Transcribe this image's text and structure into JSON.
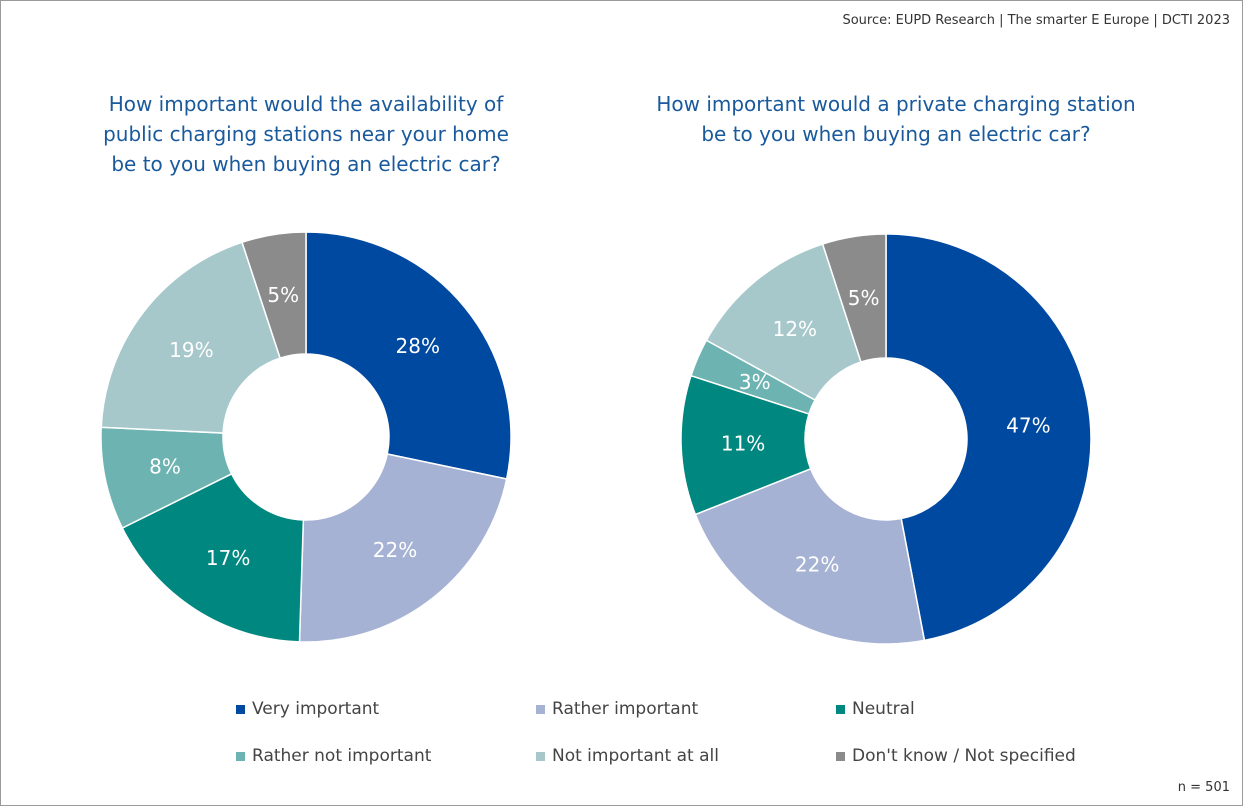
{
  "source": "Source: EUPD Research | The smarter E Europe | DCTI 2023",
  "sample": "n = 501",
  "legend": [
    {
      "label": "Very important",
      "color": "#0049a0"
    },
    {
      "label": "Rather important",
      "color": "#a5b2d4"
    },
    {
      "label": "Neutral",
      "color": "#00877f"
    },
    {
      "label": "Rather not important",
      "color": "#6db3b1"
    },
    {
      "label": "Not important at all",
      "color": "#a6c8cb"
    },
    {
      "label": "Don't know / Not specified",
      "color": "#8b8b8b"
    }
  ],
  "chart_data": [
    {
      "type": "pie",
      "variant": "donut",
      "title": "How important would the availability of public charging stations near your home be to you when buying an electric car?",
      "title_lines": [
        "How important would the availability of",
        "public charging stations near your home",
        "be to you when buying an electric car?"
      ],
      "categories": [
        "Very important",
        "Rather important",
        "Neutral",
        "Rather not important",
        "Not important at all",
        "Don't know / Not specified"
      ],
      "values": [
        28,
        22,
        17,
        8,
        19,
        5
      ],
      "labels": [
        "28%",
        "22%",
        "17%",
        "8%",
        "19%",
        "5%"
      ]
    },
    {
      "type": "pie",
      "variant": "donut",
      "title": "How important would a private charging station be to you when buying an electric car?",
      "title_lines": [
        "How important would a private charging station",
        "be to you when buying an electric car?"
      ],
      "categories": [
        "Very important",
        "Rather important",
        "Neutral",
        "Rather not important",
        "Not important at all",
        "Don't know / Not specified"
      ],
      "values": [
        47,
        22,
        11,
        3,
        12,
        5
      ],
      "labels": [
        "47%",
        "22%",
        "11%",
        "3%",
        "12%",
        "5%"
      ]
    }
  ]
}
